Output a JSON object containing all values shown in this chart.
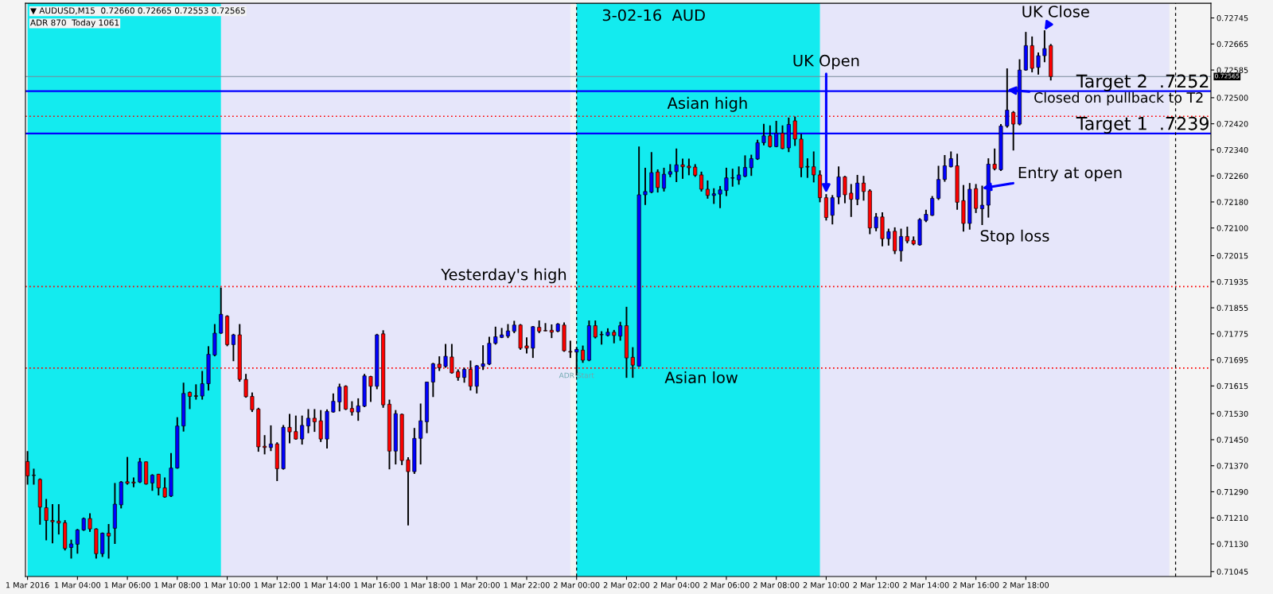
{
  "chart_data": {
    "type": "candlestick",
    "title": "3-02-16  AUD",
    "x": [
      "2016-03-01T02:00",
      "2016-03-01T02:15",
      "2016-03-01T02:30",
      "2016-03-01T02:45",
      "2016-03-01T03:00",
      "2016-03-01T03:15",
      "2016-03-01T03:30",
      "2016-03-01T03:45",
      "2016-03-01T04:00",
      "2016-03-01T04:15",
      "2016-03-01T04:30",
      "2016-03-01T04:45",
      "2016-03-01T05:00",
      "2016-03-01T05:15",
      "2016-03-01T05:30",
      "2016-03-01T05:45",
      "2016-03-01T06:00",
      "2016-03-01T06:15",
      "2016-03-01T06:30",
      "2016-03-01T06:45",
      "2016-03-01T07:00",
      "2016-03-01T07:15",
      "2016-03-01T07:30",
      "2016-03-01T07:45",
      "2016-03-01T08:00",
      "2016-03-01T08:15",
      "2016-03-01T08:30",
      "2016-03-01T08:45",
      "2016-03-01T09:00",
      "2016-03-01T09:15",
      "2016-03-01T09:30",
      "2016-03-01T09:45",
      "2016-03-01T10:00",
      "2016-03-01T10:15",
      "2016-03-01T10:30",
      "2016-03-01T10:45",
      "2016-03-01T11:00",
      "2016-03-01T11:15",
      "2016-03-01T11:30",
      "2016-03-01T11:45",
      "2016-03-01T12:00",
      "2016-03-01T12:15",
      "2016-03-01T12:30",
      "2016-03-01T12:45",
      "2016-03-01T13:00",
      "2016-03-01T13:15",
      "2016-03-01T13:30",
      "2016-03-01T13:45",
      "2016-03-01T14:00",
      "2016-03-01T14:15",
      "2016-03-01T14:30",
      "2016-03-01T14:45",
      "2016-03-01T15:00",
      "2016-03-01T15:15",
      "2016-03-01T15:30",
      "2016-03-01T15:45",
      "2016-03-01T16:00",
      "2016-03-01T16:15",
      "2016-03-01T16:30",
      "2016-03-01T16:45",
      "2016-03-01T17:00",
      "2016-03-01T17:15",
      "2016-03-01T17:30",
      "2016-03-01T17:45",
      "2016-03-01T18:00",
      "2016-03-01T18:15",
      "2016-03-01T18:30",
      "2016-03-01T18:45",
      "2016-03-01T19:00",
      "2016-03-01T19:15",
      "2016-03-01T19:30",
      "2016-03-01T19:45",
      "2016-03-01T20:00",
      "2016-03-01T20:15",
      "2016-03-01T20:30",
      "2016-03-01T20:45",
      "2016-03-01T21:00",
      "2016-03-01T21:15",
      "2016-03-01T21:30",
      "2016-03-01T21:45",
      "2016-03-01T22:00",
      "2016-03-01T22:15",
      "2016-03-01T22:30",
      "2016-03-01T22:45",
      "2016-03-01T23:00",
      "2016-03-01T23:15",
      "2016-03-01T23:30",
      "2016-03-01T23:45",
      "2016-03-02T00:00",
      "2016-03-02T00:15",
      "2016-03-02T00:30",
      "2016-03-02T00:45",
      "2016-03-02T01:00",
      "2016-03-02T01:15",
      "2016-03-02T01:30",
      "2016-03-02T01:45",
      "2016-03-02T02:00",
      "2016-03-02T02:15",
      "2016-03-02T02:30",
      "2016-03-02T02:45",
      "2016-03-02T03:00",
      "2016-03-02T03:15",
      "2016-03-02T03:30",
      "2016-03-02T03:45",
      "2016-03-02T04:00",
      "2016-03-02T04:15",
      "2016-03-02T04:30",
      "2016-03-02T04:45",
      "2016-03-02T05:00",
      "2016-03-02T05:15",
      "2016-03-02T05:30",
      "2016-03-02T05:45",
      "2016-03-02T06:00",
      "2016-03-02T06:15",
      "2016-03-02T06:30",
      "2016-03-02T06:45",
      "2016-03-02T07:00",
      "2016-03-02T07:15",
      "2016-03-02T07:30",
      "2016-03-02T07:45",
      "2016-03-02T08:00",
      "2016-03-02T08:15",
      "2016-03-02T08:30",
      "2016-03-02T08:45",
      "2016-03-02T09:00",
      "2016-03-02T09:15",
      "2016-03-02T09:30",
      "2016-03-02T09:45",
      "2016-03-02T10:00",
      "2016-03-02T10:15",
      "2016-03-02T10:30",
      "2016-03-02T10:45",
      "2016-03-02T11:00",
      "2016-03-02T11:15",
      "2016-03-02T11:30",
      "2016-03-02T11:45",
      "2016-03-02T12:00",
      "2016-03-02T12:15",
      "2016-03-02T12:30",
      "2016-03-02T12:45",
      "2016-03-02T13:00",
      "2016-03-02T13:15",
      "2016-03-02T13:30",
      "2016-03-02T13:45",
      "2016-03-02T14:00",
      "2016-03-02T14:15",
      "2016-03-02T14:30",
      "2016-03-02T14:45",
      "2016-03-02T15:00",
      "2016-03-02T15:15",
      "2016-03-02T15:30",
      "2016-03-02T15:45",
      "2016-03-02T16:00",
      "2016-03-02T16:15",
      "2016-03-02T16:30",
      "2016-03-02T16:45",
      "2016-03-02T17:00",
      "2016-03-02T17:15",
      "2016-03-02T17:30",
      "2016-03-02T17:45",
      "2016-03-02T18:00",
      "2016-03-02T18:15",
      "2016-03-02T18:30",
      "2016-03-02T18:45",
      "2016-03-02T19:00"
    ],
    "ohlc": [
      [
        0.71383,
        0.71415,
        0.71312,
        0.71339
      ],
      [
        0.71341,
        0.71361,
        0.71312,
        0.7134
      ],
      [
        0.71328,
        0.71331,
        0.71189,
        0.71243
      ],
      [
        0.71241,
        0.71268,
        0.71141,
        0.71202
      ],
      [
        0.71202,
        0.71252,
        0.71132,
        0.71198
      ],
      [
        0.712,
        0.71252,
        0.71159,
        0.71194
      ],
      [
        0.71195,
        0.71203,
        0.7111,
        0.71116
      ],
      [
        0.71119,
        0.71143,
        0.71085,
        0.7113
      ],
      [
        0.71129,
        0.71176,
        0.711,
        0.71173
      ],
      [
        0.71173,
        0.71211,
        0.7117,
        0.71208
      ],
      [
        0.71208,
        0.71224,
        0.71167,
        0.71176
      ],
      [
        0.71176,
        0.71178,
        0.71085,
        0.711
      ],
      [
        0.711,
        0.71165,
        0.7109,
        0.71163
      ],
      [
        0.71163,
        0.71191,
        0.71085,
        0.71154
      ],
      [
        0.71178,
        0.71317,
        0.7113,
        0.71252
      ],
      [
        0.7125,
        0.71323,
        0.71239,
        0.7132
      ],
      [
        0.71321,
        0.71397,
        0.71312,
        0.71316
      ],
      [
        0.7132,
        0.71334,
        0.71304,
        0.71317
      ],
      [
        0.7132,
        0.71394,
        0.71317,
        0.71382
      ],
      [
        0.71382,
        0.71383,
        0.71312,
        0.71314
      ],
      [
        0.71317,
        0.71344,
        0.71293,
        0.71341
      ],
      [
        0.71344,
        0.71345,
        0.71279,
        0.71302
      ],
      [
        0.71302,
        0.71334,
        0.71272,
        0.71274
      ],
      [
        0.71277,
        0.71409,
        0.71274,
        0.71363
      ],
      [
        0.71363,
        0.71519,
        0.71361,
        0.71492
      ],
      [
        0.71492,
        0.71625,
        0.71475,
        0.71592
      ],
      [
        0.71595,
        0.71598,
        0.71544,
        0.71583
      ],
      [
        0.71585,
        0.7162,
        0.71573,
        0.71583
      ],
      [
        0.71584,
        0.71661,
        0.71573,
        0.71622
      ],
      [
        0.71622,
        0.71737,
        0.71601,
        0.71712
      ],
      [
        0.7171,
        0.71805,
        0.71706,
        0.71777
      ],
      [
        0.71777,
        0.71917,
        0.71775,
        0.71835
      ],
      [
        0.71829,
        0.71832,
        0.71737,
        0.71742
      ],
      [
        0.71742,
        0.71775,
        0.71691,
        0.71772
      ],
      [
        0.71772,
        0.71805,
        0.71628,
        0.71635
      ],
      [
        0.71635,
        0.71652,
        0.71579,
        0.71582
      ],
      [
        0.71583,
        0.71595,
        0.71535,
        0.71542
      ],
      [
        0.71544,
        0.71548,
        0.71413,
        0.71428
      ],
      [
        0.7143,
        0.71464,
        0.71405,
        0.71426
      ],
      [
        0.71426,
        0.71494,
        0.71415,
        0.71437
      ],
      [
        0.71437,
        0.71442,
        0.71323,
        0.71361
      ],
      [
        0.71361,
        0.71495,
        0.71358,
        0.71488
      ],
      [
        0.71488,
        0.71529,
        0.71439,
        0.71474
      ],
      [
        0.71475,
        0.71524,
        0.7145,
        0.71452
      ],
      [
        0.71452,
        0.71524,
        0.71435,
        0.71494
      ],
      [
        0.71492,
        0.71544,
        0.7147,
        0.71516
      ],
      [
        0.71516,
        0.71544,
        0.71474,
        0.71505
      ],
      [
        0.71508,
        0.71541,
        0.71443,
        0.71452
      ],
      [
        0.71452,
        0.71543,
        0.71423,
        0.71537
      ],
      [
        0.71535,
        0.71592,
        0.71533,
        0.71568
      ],
      [
        0.71566,
        0.71622,
        0.71537,
        0.71612
      ],
      [
        0.71614,
        0.71617,
        0.71541,
        0.71544
      ],
      [
        0.71546,
        0.71568,
        0.71524,
        0.71535
      ],
      [
        0.71535,
        0.71577,
        0.71508,
        0.71554
      ],
      [
        0.71553,
        0.71652,
        0.7155,
        0.71646
      ],
      [
        0.71644,
        0.71646,
        0.71566,
        0.71614
      ],
      [
        0.71614,
        0.71775,
        0.71605,
        0.71772
      ],
      [
        0.71775,
        0.71786,
        0.71548,
        0.71557
      ],
      [
        0.71559,
        0.71573,
        0.71359,
        0.71415
      ],
      [
        0.71415,
        0.71541,
        0.71374,
        0.7153
      ],
      [
        0.71528,
        0.7153,
        0.71372,
        0.71386
      ],
      [
        0.71388,
        0.71396,
        0.71187,
        0.71352
      ],
      [
        0.71352,
        0.71486,
        0.71345,
        0.71454
      ],
      [
        0.71454,
        0.71561,
        0.71374,
        0.71508
      ],
      [
        0.71505,
        0.71628,
        0.7147,
        0.71627
      ],
      [
        0.71627,
        0.71686,
        0.71581,
        0.71683
      ],
      [
        0.71682,
        0.71706,
        0.71661,
        0.71671
      ],
      [
        0.71675,
        0.71744,
        0.71671,
        0.71706
      ],
      [
        0.71704,
        0.71744,
        0.71653,
        0.71655
      ],
      [
        0.71659,
        0.71666,
        0.71631,
        0.71641
      ],
      [
        0.71641,
        0.71671,
        0.71625,
        0.71666
      ],
      [
        0.71666,
        0.71693,
        0.71601,
        0.71614
      ],
      [
        0.71614,
        0.71679,
        0.71592,
        0.71677
      ],
      [
        0.71675,
        0.7174,
        0.71664,
        0.71683
      ],
      [
        0.71682,
        0.71766,
        0.71679,
        0.71746
      ],
      [
        0.71746,
        0.71797,
        0.71742,
        0.71766
      ],
      [
        0.71764,
        0.71793,
        0.71762,
        0.71772
      ],
      [
        0.71768,
        0.71805,
        0.71762,
        0.71784
      ],
      [
        0.71783,
        0.71815,
        0.71777,
        0.71802
      ],
      [
        0.71802,
        0.71805,
        0.71726,
        0.71731
      ],
      [
        0.71738,
        0.71764,
        0.71715,
        0.71731
      ],
      [
        0.71731,
        0.71799,
        0.71701,
        0.71797
      ],
      [
        0.71795,
        0.71816,
        0.71777,
        0.71783
      ],
      [
        0.71785,
        0.71808,
        0.71783,
        0.71784
      ],
      [
        0.71786,
        0.71804,
        0.71762,
        0.7178
      ],
      [
        0.71783,
        0.71808,
        0.7178,
        0.71805
      ],
      [
        0.71802,
        0.7181,
        0.7172,
        0.71723
      ],
      [
        0.71721,
        0.71754,
        0.71701,
        0.71719
      ],
      [
        0.71719,
        0.71734,
        0.71647,
        0.71727
      ],
      [
        0.71725,
        0.71739,
        0.71686,
        0.71694
      ],
      [
        0.71694,
        0.71816,
        0.71691,
        0.718
      ],
      [
        0.718,
        0.71816,
        0.71761,
        0.71765
      ],
      [
        0.71773,
        0.71783,
        0.71742,
        0.71772
      ],
      [
        0.7177,
        0.71792,
        0.71767,
        0.7178
      ],
      [
        0.7178,
        0.71787,
        0.71746,
        0.7177
      ],
      [
        0.71768,
        0.71812,
        0.71754,
        0.718
      ],
      [
        0.718,
        0.71858,
        0.7164,
        0.71701
      ],
      [
        0.71703,
        0.71734,
        0.7164,
        0.71679
      ],
      [
        0.71676,
        0.7235,
        0.71674,
        0.72202
      ],
      [
        0.72202,
        0.72285,
        0.72171,
        0.72212
      ],
      [
        0.7221,
        0.72333,
        0.72207,
        0.7227
      ],
      [
        0.72272,
        0.7228,
        0.72209,
        0.72224
      ],
      [
        0.72222,
        0.72285,
        0.72212,
        0.72265
      ],
      [
        0.72265,
        0.72296,
        0.72256,
        0.72273
      ],
      [
        0.72273,
        0.72344,
        0.72241,
        0.72294
      ],
      [
        0.72294,
        0.72313,
        0.72251,
        0.72288
      ],
      [
        0.7229,
        0.72313,
        0.72262,
        0.72285
      ],
      [
        0.72287,
        0.72296,
        0.72257,
        0.72262
      ],
      [
        0.72263,
        0.72273,
        0.72212,
        0.72219
      ],
      [
        0.72219,
        0.72246,
        0.7219,
        0.722
      ],
      [
        0.722,
        0.72222,
        0.72174,
        0.72205
      ],
      [
        0.72204,
        0.72229,
        0.72161,
        0.72217
      ],
      [
        0.72215,
        0.72285,
        0.72198,
        0.72254
      ],
      [
        0.72253,
        0.72282,
        0.72227,
        0.72254
      ],
      [
        0.72248,
        0.72289,
        0.72233,
        0.72263
      ],
      [
        0.72259,
        0.72323,
        0.72256,
        0.72286
      ],
      [
        0.72285,
        0.72325,
        0.7226,
        0.72313
      ],
      [
        0.72312,
        0.72371,
        0.72309,
        0.72362
      ],
      [
        0.72362,
        0.7242,
        0.72354,
        0.72383
      ],
      [
        0.72383,
        0.72415,
        0.72347,
        0.7235
      ],
      [
        0.7235,
        0.72429,
        0.72348,
        0.72391
      ],
      [
        0.72391,
        0.72415,
        0.72342,
        0.72344
      ],
      [
        0.72346,
        0.72439,
        0.72333,
        0.72418
      ],
      [
        0.72429,
        0.72442,
        0.72352,
        0.72373
      ],
      [
        0.72373,
        0.72389,
        0.72256,
        0.72285
      ],
      [
        0.72289,
        0.72314,
        0.72254,
        0.72287
      ],
      [
        0.72288,
        0.72335,
        0.7224,
        0.72263
      ],
      [
        0.72263,
        0.72277,
        0.72179,
        0.72193
      ],
      [
        0.72193,
        0.72204,
        0.72123,
        0.72132
      ],
      [
        0.72139,
        0.72201,
        0.72111,
        0.72193
      ],
      [
        0.72195,
        0.72289,
        0.72173,
        0.72257
      ],
      [
        0.72257,
        0.7226,
        0.72176,
        0.72202
      ],
      [
        0.72207,
        0.72235,
        0.72134,
        0.72188
      ],
      [
        0.72188,
        0.72263,
        0.7217,
        0.72238
      ],
      [
        0.72238,
        0.7226,
        0.72184,
        0.72212
      ],
      [
        0.72214,
        0.72219,
        0.72081,
        0.721
      ],
      [
        0.721,
        0.72146,
        0.7209,
        0.72134
      ],
      [
        0.72134,
        0.72148,
        0.72044,
        0.72067
      ],
      [
        0.72067,
        0.72098,
        0.72046,
        0.72089
      ],
      [
        0.7209,
        0.72102,
        0.7202,
        0.7203
      ],
      [
        0.7203,
        0.72098,
        0.71997,
        0.72074
      ],
      [
        0.72074,
        0.72104,
        0.72053,
        0.7206
      ],
      [
        0.72062,
        0.72074,
        0.72047,
        0.72051
      ],
      [
        0.72048,
        0.7213,
        0.72046,
        0.72126
      ],
      [
        0.72123,
        0.72156,
        0.72118,
        0.72142
      ],
      [
        0.72139,
        0.72198,
        0.72137,
        0.72191
      ],
      [
        0.72191,
        0.72291,
        0.72186,
        0.72249
      ],
      [
        0.72249,
        0.72324,
        0.72242,
        0.72291
      ],
      [
        0.72288,
        0.72335,
        0.72286,
        0.72313
      ],
      [
        0.72291,
        0.72328,
        0.72156,
        0.72179
      ],
      [
        0.72184,
        0.72232,
        0.72089,
        0.72114
      ],
      [
        0.72114,
        0.72238,
        0.72095,
        0.72219
      ],
      [
        0.72221,
        0.72235,
        0.72146,
        0.7216
      ],
      [
        0.72159,
        0.7223,
        0.72109,
        0.7217
      ],
      [
        0.7217,
        0.72314,
        0.72132,
        0.72296
      ],
      [
        0.72296,
        0.72344,
        0.72277,
        0.72282
      ],
      [
        0.72279,
        0.72419,
        0.72275,
        0.72413
      ],
      [
        0.72413,
        0.7259,
        0.72408,
        0.72462
      ],
      [
        0.72455,
        0.72459,
        0.72338,
        0.72419
      ],
      [
        0.72419,
        0.72618,
        0.72415,
        0.72585
      ],
      [
        0.72585,
        0.72702,
        0.72583,
        0.7266
      ],
      [
        0.7266,
        0.72688,
        0.72578,
        0.7259
      ],
      [
        0.72593,
        0.72639,
        0.72571,
        0.72629
      ],
      [
        0.72629,
        0.72707,
        0.72609,
        0.72651
      ],
      [
        0.7266,
        0.72665,
        0.72553,
        0.72565
      ]
    ],
    "colors": [
      "#ff0000",
      "#ff0000",
      "#ff0000",
      "#ff0000",
      "#ff0000",
      "#ff0000",
      "#ff0000",
      "#0000ff",
      "#0000ff",
      "#0000ff",
      "#ff0000",
      "#ff0000",
      "#0000ff",
      "#ff0000",
      "#0000ff",
      "#0000ff",
      "#ff0000",
      "#ff0000",
      "#0000ff",
      "#ff0000",
      "#0000ff",
      "#ff0000",
      "#ff0000",
      "#0000ff",
      "#0000ff",
      "#0000ff",
      "#ff0000",
      "#ff0000",
      "#0000ff",
      "#0000ff",
      "#0000ff",
      "#0000ff",
      "#ff0000",
      "#0000ff",
      "#ff0000",
      "#ff0000",
      "#ff0000",
      "#ff0000",
      "#ff0000",
      "#0000ff",
      "#ff0000",
      "#0000ff",
      "#ff0000",
      "#ff0000",
      "#0000ff",
      "#0000ff",
      "#ff0000",
      "#ff0000",
      "#0000ff",
      "#0000ff",
      "#0000ff",
      "#ff0000",
      "#ff0000",
      "#0000ff",
      "#0000ff",
      "#ff0000",
      "#0000ff",
      "#ff0000",
      "#ff0000",
      "#0000ff",
      "#ff0000",
      "#ff0000",
      "#0000ff",
      "#0000ff",
      "#0000ff",
      "#0000ff",
      "#ff0000",
      "#0000ff",
      "#ff0000",
      "#ff0000",
      "#0000ff",
      "#ff0000",
      "#0000ff",
      "#0000ff",
      "#0000ff",
      "#0000ff",
      "#0000ff",
      "#0000ff",
      "#0000ff",
      "#ff0000",
      "#ff0000",
      "#0000ff",
      "#ff0000",
      "#ff0000",
      "#ff0000",
      "#0000ff",
      "#ff0000",
      "#ff0000",
      "#0000ff",
      "#ff0000",
      "#0000ff",
      "#ff0000",
      "#ff0000",
      "#0000ff",
      "#ff0000",
      "#0000ff",
      "#ff0000",
      "#ff0000",
      "#0000ff",
      "#0000ff",
      "#0000ff",
      "#ff0000",
      "#0000ff",
      "#0000ff",
      "#0000ff",
      "#ff0000",
      "#ff0000",
      "#ff0000",
      "#ff0000",
      "#ff0000",
      "#0000ff",
      "#0000ff",
      "#0000ff",
      "#0000ff",
      "#0000ff",
      "#0000ff",
      "#0000ff",
      "#0000ff",
      "#0000ff",
      "#ff0000",
      "#0000ff",
      "#ff0000",
      "#0000ff",
      "#ff0000",
      "#ff0000",
      "#ff0000",
      "#ff0000",
      "#ff0000",
      "#ff0000",
      "#0000ff",
      "#0000ff",
      "#ff0000",
      "#ff0000",
      "#0000ff",
      "#ff0000",
      "#ff0000",
      "#0000ff",
      "#ff0000",
      "#0000ff",
      "#ff0000",
      "#0000ff",
      "#ff0000",
      "#ff0000",
      "#0000ff",
      "#0000ff",
      "#0000ff",
      "#0000ff",
      "#0000ff",
      "#0000ff",
      "#ff0000",
      "#ff0000",
      "#0000ff",
      "#ff0000",
      "#0000ff",
      "#0000ff",
      "#ff0000",
      "#0000ff",
      "#0000ff",
      "#ff0000",
      "#0000ff",
      "#0000ff",
      "#ff0000",
      "#0000ff",
      "#0000ff",
      "#ff0000"
    ],
    "xlim": [
      "2016-03-01T01:55",
      "2016-03-03T01:25"
    ],
    "xticks": [
      {
        "value": "2016-03-01T02:00",
        "label": "1 Mar 2016"
      },
      {
        "value": "2016-03-01T04:00",
        "label": "1 Mar 04:00"
      },
      {
        "value": "2016-03-01T06:00",
        "label": "1 Mar 06:00"
      },
      {
        "value": "2016-03-01T08:00",
        "label": "1 Mar 08:00"
      },
      {
        "value": "2016-03-01T10:00",
        "label": "1 Mar 10:00"
      },
      {
        "value": "2016-03-01T12:00",
        "label": "1 Mar 12:00"
      },
      {
        "value": "2016-03-01T14:00",
        "label": "1 Mar 14:00"
      },
      {
        "value": "2016-03-01T16:00",
        "label": "1 Mar 16:00"
      },
      {
        "value": "2016-03-01T18:00",
        "label": "1 Mar 18:00"
      },
      {
        "value": "2016-03-01T20:00",
        "label": "1 Mar 20:00"
      },
      {
        "value": "2016-03-01T22:00",
        "label": "1 Mar 22:00"
      },
      {
        "value": "2016-03-02T00:00",
        "label": "2 Mar 00:00"
      },
      {
        "value": "2016-03-02T02:00",
        "label": "2 Mar 02:00"
      },
      {
        "value": "2016-03-02T04:00",
        "label": "2 Mar 04:00"
      },
      {
        "value": "2016-03-02T06:00",
        "label": "2 Mar 06:00"
      },
      {
        "value": "2016-03-02T08:00",
        "label": "2 Mar 08:00"
      },
      {
        "value": "2016-03-02T10:00",
        "label": "2 Mar 10:00"
      },
      {
        "value": "2016-03-02T12:00",
        "label": "2 Mar 12:00"
      },
      {
        "value": "2016-03-02T14:00",
        "label": "2 Mar 14:00"
      },
      {
        "value": "2016-03-02T16:00",
        "label": "2 Mar 16:00"
      },
      {
        "value": "2016-03-02T18:00",
        "label": "2 Mar 18:00"
      }
    ],
    "ylim": [
      0.7103,
      0.7279
    ],
    "yticks": [
      0.72745,
      0.72665,
      0.72585,
      {
        "value": 0.725,
        "label": "0.72500"
      },
      {
        "value": 0.7242,
        "label": "0.72420"
      },
      {
        "value": 0.7234,
        "label": "0.72340"
      },
      {
        "value": 0.7226,
        "label": "0.72260"
      },
      {
        "value": 0.7218,
        "label": "0.72180"
      },
      {
        "value": 0.721,
        "label": "0.72100"
      },
      0.72015,
      0.71935,
      0.71855,
      0.71775,
      0.71695,
      0.71615,
      {
        "value": 0.7153,
        "label": "0.71530"
      },
      {
        "value": 0.7145,
        "label": "0.71450"
      },
      {
        "value": 0.7137,
        "label": "0.71370"
      },
      {
        "value": 0.7129,
        "label": "0.71290"
      },
      {
        "value": 0.7121,
        "label": "0.71210"
      },
      {
        "value": 0.7113,
        "label": "0.71130"
      },
      0.71045
    ],
    "bands": [
      {
        "axis": "x",
        "from": "2016-03-01T09:45",
        "to": "2016-03-01T23:45",
        "color": "#e6e6fa"
      },
      {
        "axis": "x",
        "from": "2016-03-02T09:45",
        "to": "2016-03-02T23:45",
        "color": "#e6e6fa"
      },
      {
        "axis": "x",
        "from": "2016-03-01T02:00",
        "to": "2016-03-01T09:45",
        "color": "#13ebef"
      },
      {
        "axis": "x",
        "from": "2016-03-02T00:00",
        "to": "2016-03-02T09:45",
        "color": "#13ebef"
      }
    ],
    "ref_lines": [
      {
        "axis": "y",
        "value": 0.7252,
        "label": "Target 2  .7252",
        "color": "#0000ff",
        "line_style": "solid"
      },
      {
        "axis": "y",
        "value": 0.7239,
        "label": "Target 1  .7239",
        "color": "#0000ff",
        "line_style": "solid"
      },
      {
        "axis": "y",
        "value": 0.72565,
        "label": "0.72565",
        "color": "#778899",
        "line_style": "solid"
      },
      {
        "axis": "y",
        "value": 0.72443,
        "color": "#ff0000",
        "line_style": "dotted"
      },
      {
        "axis": "y",
        "value": 0.7192,
        "color": "#ff0000",
        "line_style": "dotted"
      },
      {
        "axis": "y",
        "value": 0.7167,
        "color": "#ff0000",
        "line_style": "dotted"
      },
      {
        "axis": "x",
        "value": "2016-03-02T00:00",
        "color": "#000000",
        "line_style": "dashed"
      },
      {
        "axis": "x",
        "value": "2016-03-03T00:00",
        "color": "#000000",
        "line_style": "dashed"
      }
    ],
    "annotations": [
      "▼ AUDUSD,M15  0.72660 0.72665 0.72553 0.72565",
      "ADR 870  Today 1061",
      {
        "text": "Yesterday's high",
        "x": "2016-03-01T23:45",
        "y": 0.7192
      },
      {
        "text": "Asian high",
        "x": "2016-03-02T05:15",
        "y": 0.72443
      },
      {
        "text": "Asian low",
        "x": "2016-03-02T05:00",
        "y": 0.7167
      },
      {
        "text": "ADR Start",
        "x": "2016-03-02T00:00",
        "y": 0.7167
      },
      {
        "text": "UK Open",
        "x": "2016-03-02T10:00",
        "y": 0.72207
      },
      {
        "text": "UK Close",
        "x": "2016-03-02T18:45",
        "y": 0.72707
      },
      {
        "text": "Closed on pullback to T2",
        "x": "2016-03-02T17:15",
        "y": 0.72524
      },
      {
        "text": "Entry at open",
        "x": "2016-03-02T16:15",
        "y": 0.72222
      },
      "Stop loss"
    ]
  }
}
